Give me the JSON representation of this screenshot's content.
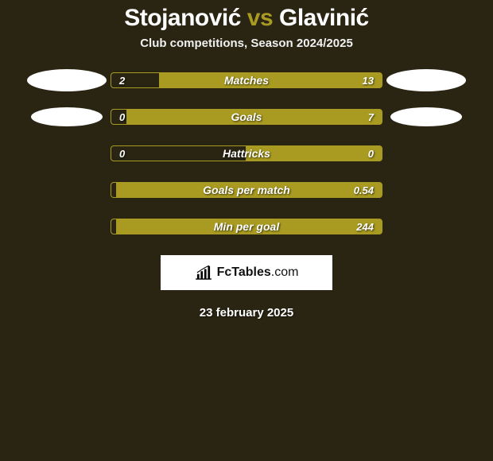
{
  "header": {
    "player1": "Stojanović",
    "vs": "vs",
    "player2": "Glavinić",
    "subtitle": "Club competitions, Season 2024/2025"
  },
  "colors": {
    "accent": "#a99b21",
    "bg": "#2a2513",
    "text": "#ffffff"
  },
  "rows": [
    {
      "id": "matches",
      "label": "Matches",
      "left_value": "2",
      "right_value": "13",
      "left_num": 2,
      "right_num": 13,
      "left_pct": 18,
      "show_badges": true,
      "badge_small": false
    },
    {
      "id": "goals",
      "label": "Goals",
      "left_value": "0",
      "right_value": "7",
      "left_num": 0,
      "right_num": 7,
      "left_pct": 6,
      "show_badges": true,
      "badge_small": true
    },
    {
      "id": "hattricks",
      "label": "Hattricks",
      "left_value": "0",
      "right_value": "0",
      "left_num": 0,
      "right_num": 0,
      "left_pct": 50,
      "show_badges": false
    },
    {
      "id": "gpm",
      "label": "Goals per match",
      "left_value": "",
      "right_value": "0.54",
      "left_num": 0,
      "right_num": 0.54,
      "left_pct": 2,
      "show_badges": false
    },
    {
      "id": "mpg",
      "label": "Min per goal",
      "left_value": "",
      "right_value": "244",
      "left_num": 0,
      "right_num": 244,
      "left_pct": 2,
      "show_badges": false
    }
  ],
  "footer": {
    "logo_main": "FcTables",
    "logo_ext": ".com",
    "date": "23 february 2025"
  }
}
